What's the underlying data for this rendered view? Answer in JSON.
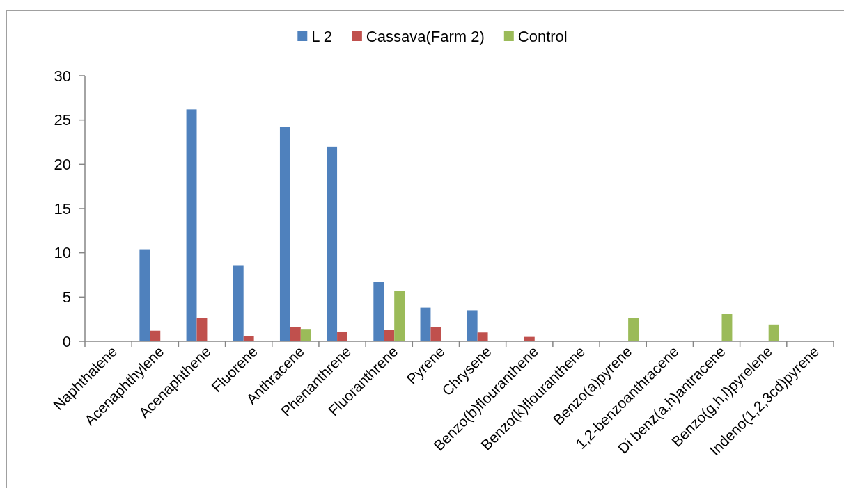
{
  "chart_data": {
    "type": "bar",
    "categories": [
      "Naphthalene",
      "Acenaphthylene",
      "Acenaphthene",
      "Fluorene",
      "Anthracene",
      "Phenanthrene",
      "Fluoranthrene",
      "Pyrene",
      "Chrysene",
      "Benzo(b)flouranthene",
      "Benzo(k)flouranthene",
      "Benzo(a)pyrene",
      "1,2-benzoanthracene",
      "Di benz(a,h)antracene",
      "Benzo(g,h,l)pyrelene",
      "Indeno(1,2,3cd)pyrene"
    ],
    "series": [
      {
        "name": "L 2",
        "color": "#4f81bd",
        "values": [
          null,
          10.4,
          26.2,
          8.6,
          24.2,
          22.0,
          6.7,
          3.8,
          3.5,
          null,
          null,
          null,
          null,
          null,
          null,
          null
        ]
      },
      {
        "name": "Cassava(Farm 2)",
        "color": "#c0504d",
        "values": [
          null,
          1.2,
          2.6,
          0.6,
          1.6,
          1.1,
          1.3,
          1.6,
          1.0,
          0.5,
          null,
          null,
          null,
          null,
          null,
          null
        ]
      },
      {
        "name": "Control",
        "color": "#9bbb59",
        "values": [
          null,
          null,
          null,
          null,
          1.4,
          null,
          5.7,
          null,
          null,
          null,
          null,
          2.6,
          null,
          3.1,
          1.9,
          null
        ]
      }
    ],
    "ylim": [
      0,
      30
    ],
    "yticks": [
      0,
      5,
      10,
      15,
      20,
      25,
      30
    ],
    "legend": "top"
  }
}
